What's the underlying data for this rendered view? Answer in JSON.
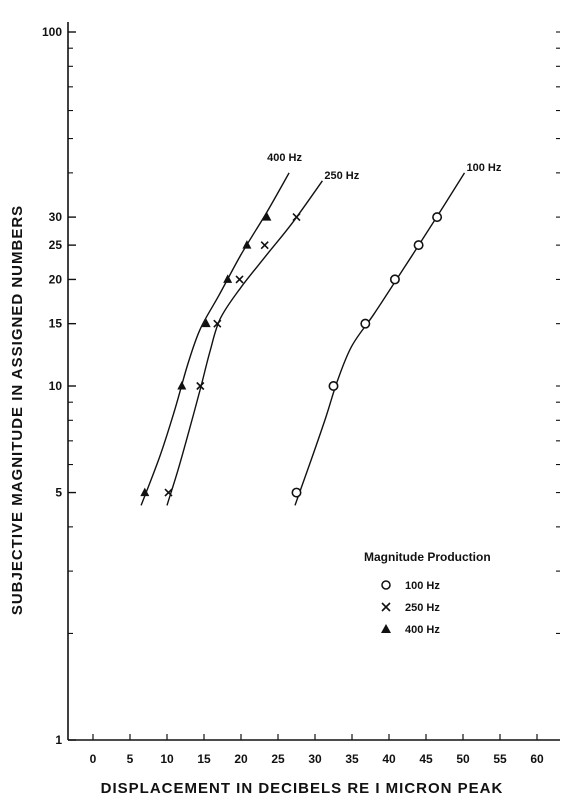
{
  "chart_data": {
    "type": "scatter",
    "title": "",
    "xlabel": "DISPLACEMENT IN DECIBELS RE I MICRON PEAK",
    "ylabel": "SUBJECTIVE MAGNITUDE IN ASSIGNED NUMBERS",
    "x_scale": "linear",
    "y_scale": "log",
    "xlim": [
      -5,
      65
    ],
    "ylim": [
      1,
      100
    ],
    "x_ticks": [
      0,
      5,
      10,
      15,
      20,
      25,
      30,
      35,
      40,
      45,
      50,
      55,
      60
    ],
    "x_tick_labels": [
      "0",
      "5",
      "10",
      "15",
      "20",
      "25",
      "30",
      "35",
      "40",
      "45",
      "50",
      "55",
      "60"
    ],
    "y_ticks": [
      1,
      5,
      10,
      15,
      20,
      25,
      30,
      100
    ],
    "y_tick_labels": [
      "1",
      "5",
      "10",
      "15",
      "20",
      "25",
      "30",
      "100"
    ],
    "grid": false,
    "legend": {
      "title": "Magnitude Production",
      "placement": "bottom-right",
      "entries": [
        {
          "marker": "○",
          "label": "100 Hz"
        },
        {
          "marker": "x",
          "label": "250 Hz"
        },
        {
          "marker": "▲",
          "label": "400 Hz"
        }
      ]
    },
    "series": [
      {
        "name": "100 Hz",
        "curve_label": "100 Hz",
        "marker": "circle",
        "x": [
          27.5,
          32.5,
          36.8,
          40.8,
          44.0,
          46.5
        ],
        "y": [
          5,
          10,
          15,
          20,
          25,
          30
        ],
        "curve": {
          "x": [
            27.3,
            29.5,
            31.5,
            33.0,
            35.0,
            38.0,
            42.0,
            46.0,
            50.2
          ],
          "y": [
            4.6,
            6.2,
            8.2,
            10.3,
            13.0,
            16.0,
            21.5,
            29.0,
            40.0
          ]
        }
      },
      {
        "name": "250 Hz",
        "curve_label": "250 Hz",
        "marker": "x",
        "x": [
          10.2,
          14.5,
          16.8,
          19.8,
          23.2,
          27.5
        ],
        "y": [
          5,
          10,
          15,
          20,
          25,
          30
        ],
        "curve": {
          "x": [
            10.0,
            11.5,
            13.0,
            14.5,
            15.8,
            17.2,
            20.0,
            23.5,
            27.0,
            31.0
          ],
          "y": [
            4.6,
            5.8,
            7.5,
            9.8,
            12.5,
            15.5,
            19.0,
            23.5,
            29.0,
            38.0
          ]
        }
      },
      {
        "name": "400 Hz",
        "curve_label": "400 Hz",
        "marker": "triangle",
        "x": [
          7.0,
          12.0,
          15.3,
          18.2,
          20.8,
          23.5
        ],
        "y": [
          5,
          10,
          15,
          20,
          25,
          30
        ],
        "curve": {
          "x": [
            6.5,
            9.0,
            11.0,
            12.8,
            14.5,
            17.0,
            20.0,
            23.5,
            26.5
          ],
          "y": [
            4.6,
            6.3,
            8.5,
            11.5,
            14.5,
            18.0,
            23.5,
            31.0,
            40.0
          ]
        }
      }
    ]
  }
}
